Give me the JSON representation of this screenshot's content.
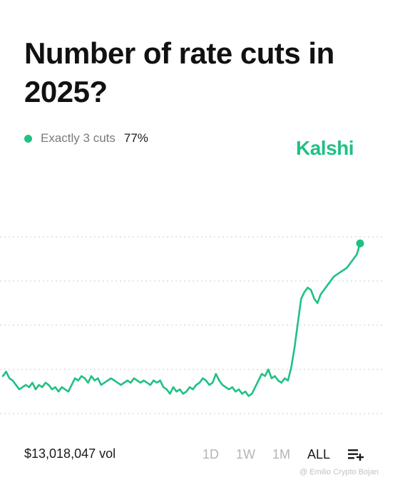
{
  "title": "Number of rate cuts in 2025?",
  "brand": {
    "name": "Kalshi",
    "color": "#1fc183"
  },
  "legend": {
    "label": "Exactly 3 cuts",
    "value": "77%",
    "color": "#1fc183"
  },
  "footer": {
    "volume": "$13,018,047 vol",
    "ranges": [
      "1D",
      "1W",
      "1M",
      "ALL"
    ],
    "active_range": "ALL",
    "list_icon": "playlist-add-icon"
  },
  "watermark": "@ Emilio Crypto Bojan",
  "colors": {
    "line": "#1fc183",
    "grid": "#d6d6d6",
    "inactive": "#b4b4b4"
  },
  "chart_data": {
    "type": "line",
    "title": "",
    "xlabel": "",
    "ylabel": "",
    "ylim": [
      0,
      100
    ],
    "grid": true,
    "gridlines_y": [
      0,
      20,
      40,
      60,
      80
    ],
    "end_marker": true,
    "series": [
      {
        "values": [
          17,
          19,
          16,
          15,
          13,
          11,
          12,
          13,
          12,
          14,
          11,
          13,
          12,
          14,
          13,
          11,
          12,
          10,
          12,
          11,
          10,
          13,
          16,
          15,
          17,
          16,
          14,
          17,
          15,
          16,
          13,
          14,
          15,
          16,
          15,
          14,
          13,
          14,
          15,
          14,
          16,
          15,
          14,
          15,
          14,
          13,
          15,
          14,
          15,
          12,
          11,
          9,
          12,
          10,
          11,
          9,
          10,
          12,
          11,
          13,
          14,
          16,
          15,
          13,
          14,
          18,
          15,
          13,
          12,
          11,
          12,
          10,
          11,
          9,
          10,
          8,
          9,
          12,
          15,
          18,
          17,
          20,
          16,
          17,
          15,
          14,
          16,
          15,
          21,
          30,
          41,
          52,
          55,
          57,
          56,
          52,
          50,
          54,
          56,
          58,
          60,
          62,
          63,
          64,
          65,
          66,
          68,
          70,
          72,
          77
        ]
      }
    ]
  }
}
